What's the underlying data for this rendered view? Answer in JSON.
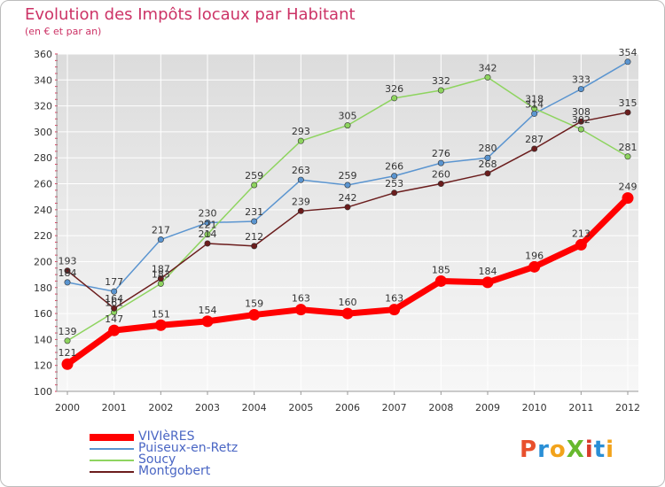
{
  "header": {
    "title": "Evolution des Impôts locaux par Habitant",
    "subtitle": "(en € et par an)"
  },
  "logo": {
    "text": "ProXiti",
    "colors": [
      "#e8502d",
      "#2a8fd6",
      "#f2a31b",
      "#67b92e",
      "#d93b2b",
      "#2a8fd6",
      "#f2a31b"
    ]
  },
  "chart_data": {
    "type": "line",
    "title": "Evolution des Impôts locaux par Habitant",
    "subtitle": "(en € et par an)",
    "xlabel": "",
    "ylabel": "",
    "x": [
      "2000",
      "2001",
      "2002",
      "2003",
      "2004",
      "2005",
      "2006",
      "2007",
      "2008",
      "2009",
      "2010",
      "2011",
      "2012"
    ],
    "ylim": [
      100,
      360
    ],
    "yticks": [
      100,
      120,
      140,
      160,
      180,
      200,
      220,
      240,
      260,
      280,
      300,
      320,
      340,
      360
    ],
    "grid": true,
    "legend_position": "bottom-left",
    "series": [
      {
        "name": "VIVIèRES",
        "color": "#ff0000",
        "emphasis": true,
        "values": [
          121,
          147,
          151,
          154,
          159,
          163,
          160,
          163,
          185,
          184,
          196,
          213,
          249
        ]
      },
      {
        "name": "Puiseux-en-Retz",
        "color": "#5b95d0",
        "emphasis": false,
        "values": [
          184,
          177,
          217,
          230,
          231,
          263,
          259,
          266,
          276,
          280,
          314,
          333,
          354
        ]
      },
      {
        "name": "Soucy",
        "color": "#8ed45f",
        "emphasis": false,
        "values": [
          139,
          161,
          183,
          221,
          259,
          293,
          305,
          326,
          332,
          342,
          318,
          302,
          281
        ]
      },
      {
        "name": "Montgobert",
        "color": "#6b1d1d",
        "emphasis": false,
        "values": [
          193,
          164,
          187,
          214,
          212,
          239,
          242,
          253,
          260,
          268,
          287,
          308,
          315
        ]
      }
    ]
  }
}
